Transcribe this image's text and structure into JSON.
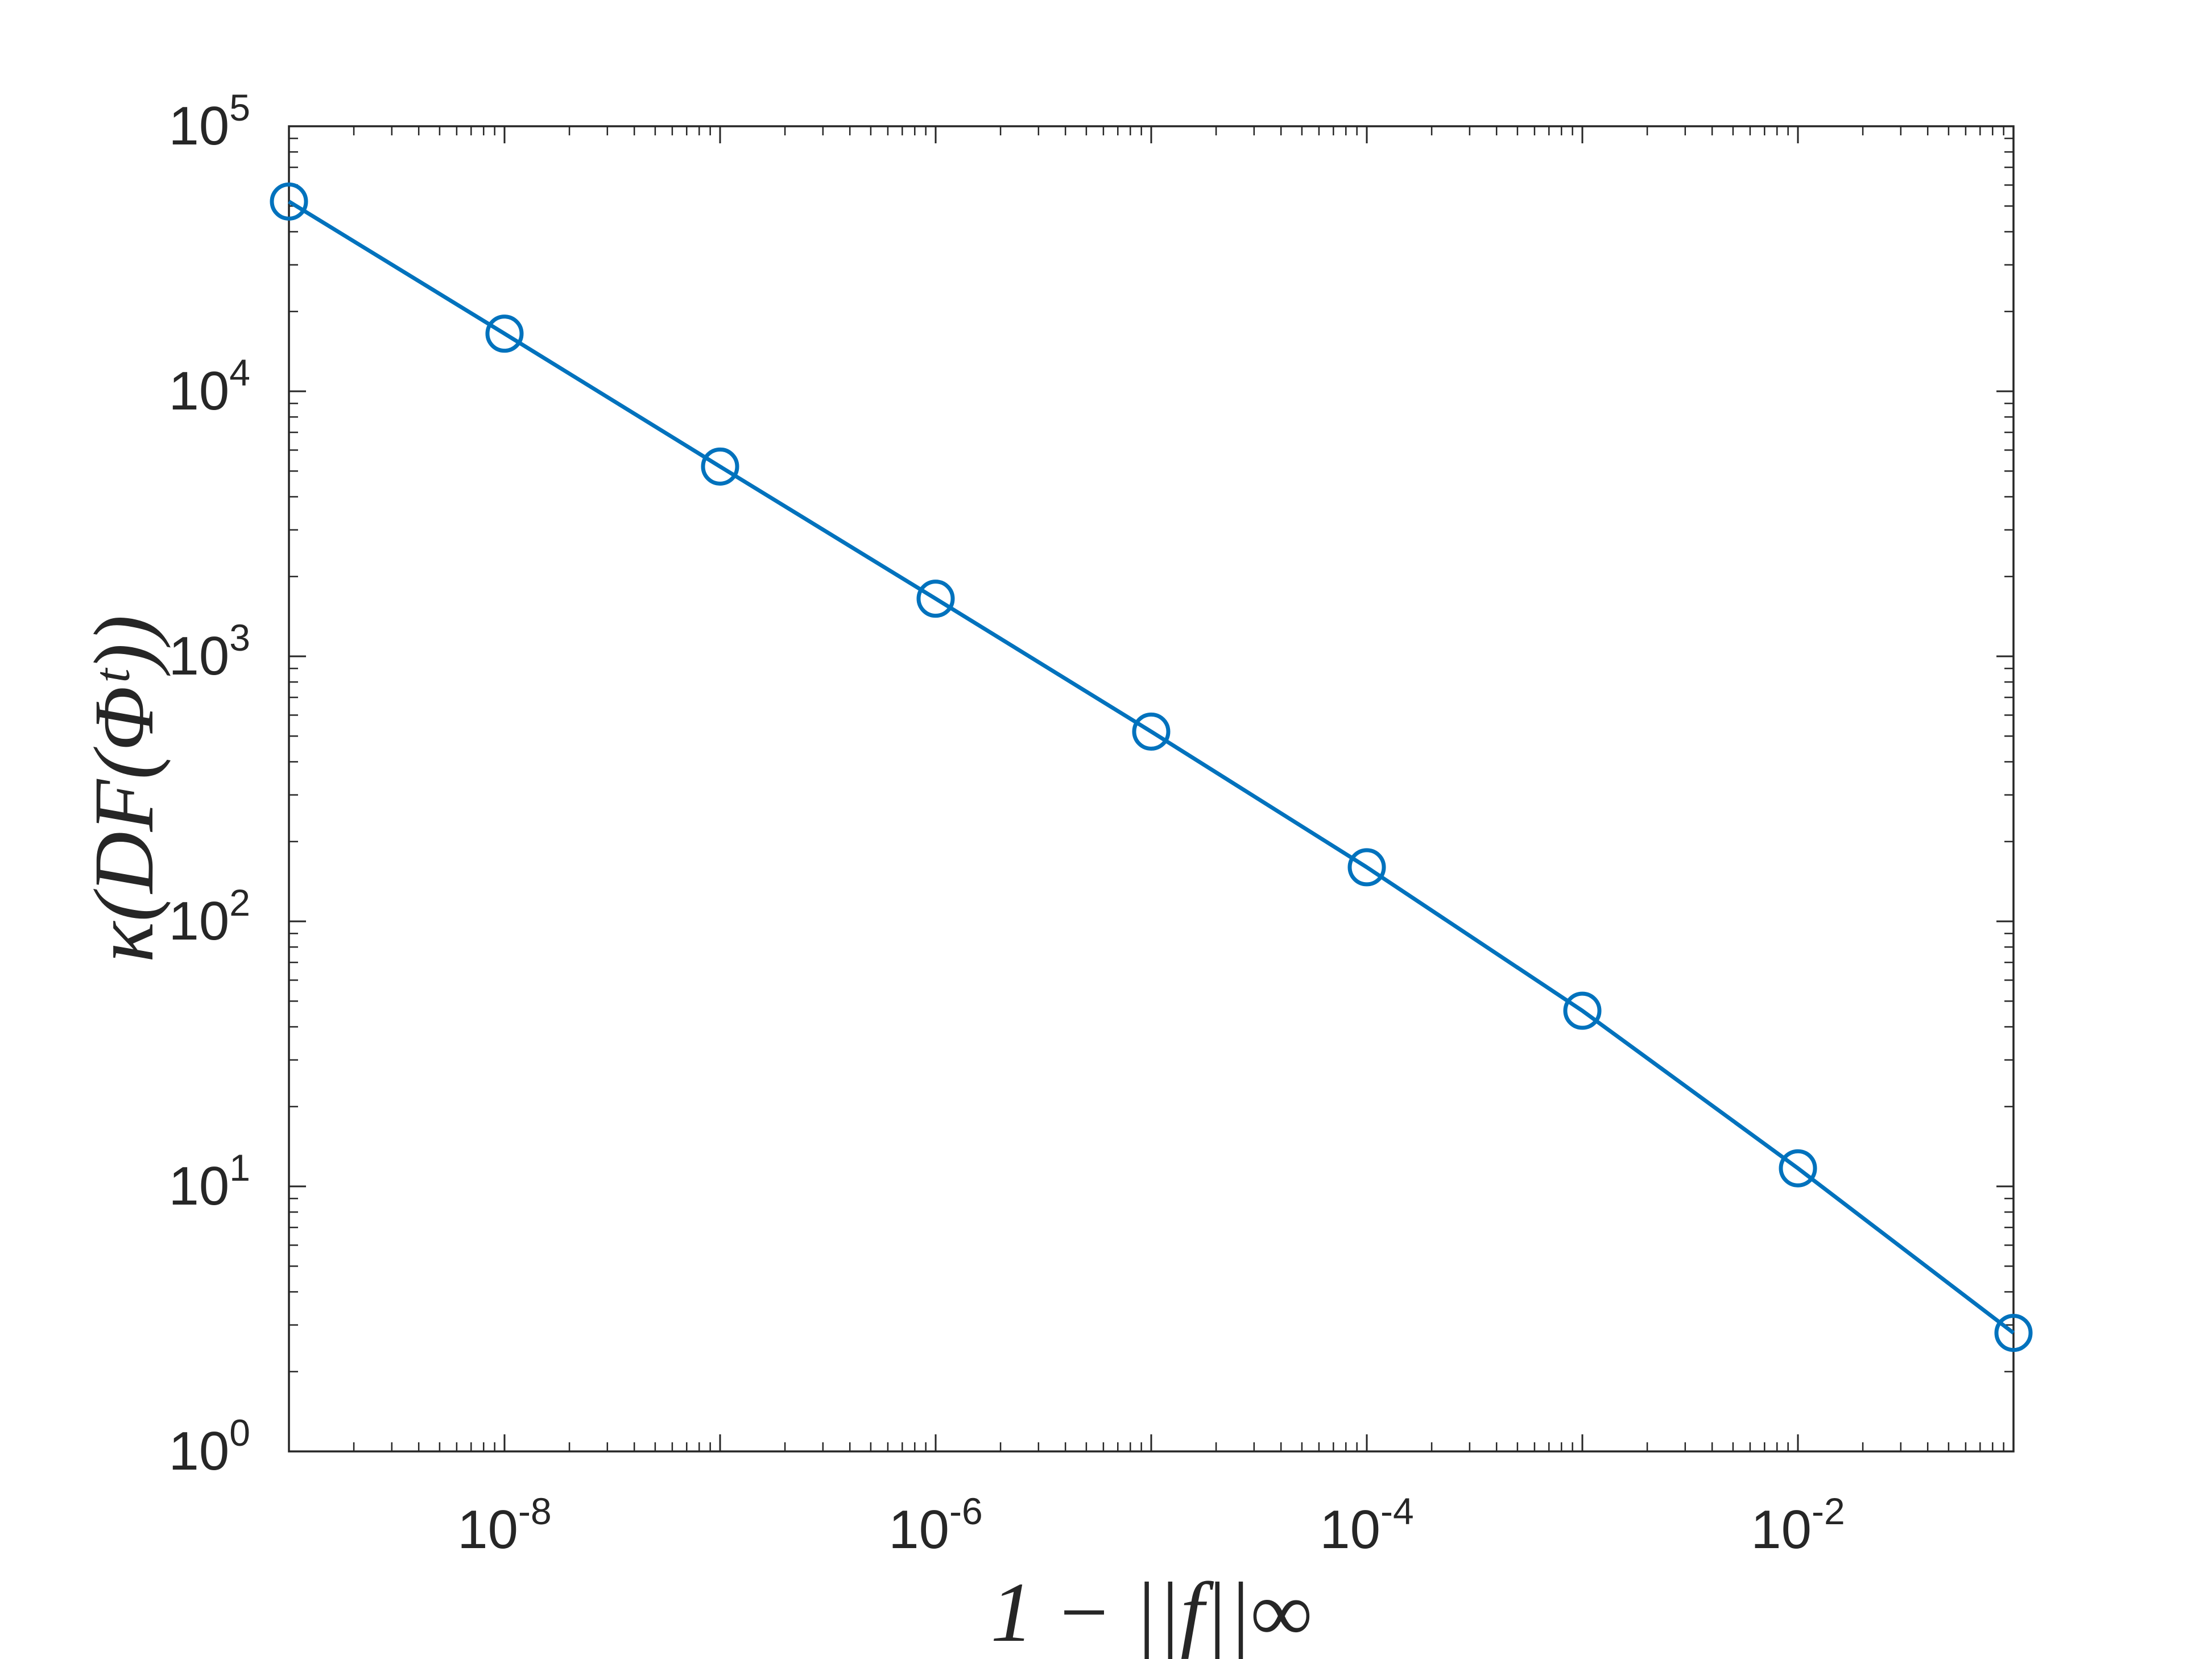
{
  "chart_data": {
    "type": "line",
    "title": "",
    "xlabel": "1 − ||f||∞",
    "ylabel": "κ(DF(Φᵗ))",
    "x_scale": "log",
    "y_scale": "log",
    "xlim": [
      1e-09,
      0.1
    ],
    "ylim": [
      1,
      100000
    ],
    "grid": false,
    "legend": "none",
    "x_ticks": [
      {
        "value": 1e-08,
        "base": "10",
        "exp": "-8"
      },
      {
        "value": 1e-06,
        "base": "10",
        "exp": "-6"
      },
      {
        "value": 0.0001,
        "base": "10",
        "exp": "-4"
      },
      {
        "value": 0.01,
        "base": "10",
        "exp": "-2"
      }
    ],
    "y_ticks": [
      {
        "value": 1,
        "base": "10",
        "exp": "0"
      },
      {
        "value": 10,
        "base": "10",
        "exp": "1"
      },
      {
        "value": 100,
        "base": "10",
        "exp": "2"
      },
      {
        "value": 1000,
        "base": "10",
        "exp": "3"
      },
      {
        "value": 10000,
        "base": "10",
        "exp": "4"
      },
      {
        "value": 100000,
        "base": "10",
        "exp": "5"
      }
    ],
    "series": [
      {
        "color": "#0072BD",
        "marker": "circle",
        "x": [
          1e-09,
          1e-08,
          1e-07,
          1e-06,
          1e-05,
          0.0001,
          0.001,
          0.01,
          0.1
        ],
        "y": [
          52000,
          16500,
          5200,
          1650,
          520,
          160,
          46,
          11.7,
          2.8
        ]
      }
    ]
  }
}
